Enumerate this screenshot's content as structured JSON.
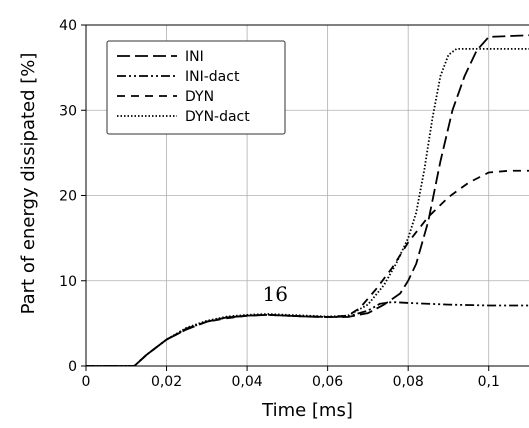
{
  "chart_data": {
    "type": "line",
    "xlabel": "Time [ms]",
    "ylabel": "Part of energy dissipated [%]",
    "xlim": [
      0,
      0.11
    ],
    "ylim": [
      0,
      40
    ],
    "x_ticks": [
      0,
      0.02,
      0.04,
      0.06,
      0.08,
      0.1
    ],
    "x_tick_labels": [
      "0",
      "0,02",
      "0,04",
      "0,06",
      "0,08",
      "0,1"
    ],
    "y_ticks": [
      0,
      10,
      20,
      30,
      40
    ],
    "y_tick_labels": [
      "0",
      "10",
      "20",
      "30",
      "40"
    ],
    "grid": true,
    "legend_position": "top-left",
    "annotation": {
      "text": "16",
      "x": 0.047,
      "y": 7.6
    },
    "series": [
      {
        "name": "INI",
        "dash": "long-dash",
        "points": [
          [
            0,
            0
          ],
          [
            0.012,
            0
          ],
          [
            0.015,
            1.3
          ],
          [
            0.02,
            3.1
          ],
          [
            0.025,
            4.3
          ],
          [
            0.03,
            5.2
          ],
          [
            0.035,
            5.7
          ],
          [
            0.04,
            5.9
          ],
          [
            0.045,
            6.0
          ],
          [
            0.05,
            5.9
          ],
          [
            0.055,
            5.8
          ],
          [
            0.06,
            5.75
          ],
          [
            0.065,
            5.75
          ],
          [
            0.07,
            6.2
          ],
          [
            0.074,
            7.2
          ],
          [
            0.078,
            8.5
          ],
          [
            0.08,
            10
          ],
          [
            0.082,
            12
          ],
          [
            0.085,
            17
          ],
          [
            0.088,
            24
          ],
          [
            0.091,
            30
          ],
          [
            0.094,
            34
          ],
          [
            0.097,
            37
          ],
          [
            0.1,
            38.6
          ],
          [
            0.11,
            38.8
          ]
        ]
      },
      {
        "name": "INI-dact",
        "dash": "dash-dot-dot",
        "points": [
          [
            0,
            0
          ],
          [
            0.012,
            0
          ],
          [
            0.015,
            1.3
          ],
          [
            0.02,
            3.1
          ],
          [
            0.025,
            4.4
          ],
          [
            0.03,
            5.2
          ],
          [
            0.035,
            5.7
          ],
          [
            0.04,
            5.9
          ],
          [
            0.045,
            6.0
          ],
          [
            0.05,
            5.9
          ],
          [
            0.055,
            5.8
          ],
          [
            0.06,
            5.75
          ],
          [
            0.065,
            5.8
          ],
          [
            0.07,
            6.5
          ],
          [
            0.073,
            7.3
          ],
          [
            0.076,
            7.5
          ],
          [
            0.08,
            7.4
          ],
          [
            0.09,
            7.2
          ],
          [
            0.1,
            7.1
          ],
          [
            0.11,
            7.1
          ]
        ]
      },
      {
        "name": "DYN",
        "dash": "dash",
        "points": [
          [
            0,
            0
          ],
          [
            0.012,
            0
          ],
          [
            0.015,
            1.3
          ],
          [
            0.02,
            3.1
          ],
          [
            0.025,
            4.3
          ],
          [
            0.03,
            5.2
          ],
          [
            0.035,
            5.6
          ],
          [
            0.04,
            5.9
          ],
          [
            0.045,
            6.0
          ],
          [
            0.05,
            5.9
          ],
          [
            0.055,
            5.8
          ],
          [
            0.06,
            5.75
          ],
          [
            0.065,
            5.9
          ],
          [
            0.068,
            6.8
          ],
          [
            0.072,
            9
          ],
          [
            0.076,
            11.5
          ],
          [
            0.08,
            14.5
          ],
          [
            0.085,
            17.5
          ],
          [
            0.09,
            19.8
          ],
          [
            0.095,
            21.5
          ],
          [
            0.1,
            22.7
          ],
          [
            0.105,
            22.9
          ],
          [
            0.11,
            22.9
          ]
        ]
      },
      {
        "name": "DYN-dact",
        "dash": "dot",
        "points": [
          [
            0,
            0
          ],
          [
            0.012,
            0
          ],
          [
            0.015,
            1.3
          ],
          [
            0.02,
            3.1
          ],
          [
            0.025,
            4.5
          ],
          [
            0.03,
            5.3
          ],
          [
            0.035,
            5.8
          ],
          [
            0.04,
            6.0
          ],
          [
            0.045,
            6.1
          ],
          [
            0.05,
            6.0
          ],
          [
            0.055,
            5.9
          ],
          [
            0.06,
            5.8
          ],
          [
            0.065,
            5.9
          ],
          [
            0.07,
            7.2
          ],
          [
            0.074,
            9.5
          ],
          [
            0.077,
            12
          ],
          [
            0.08,
            15
          ],
          [
            0.082,
            18
          ],
          [
            0.084,
            23
          ],
          [
            0.086,
            29
          ],
          [
            0.088,
            34
          ],
          [
            0.09,
            36.5
          ],
          [
            0.092,
            37.2
          ],
          [
            0.11,
            37.2
          ]
        ]
      }
    ]
  }
}
